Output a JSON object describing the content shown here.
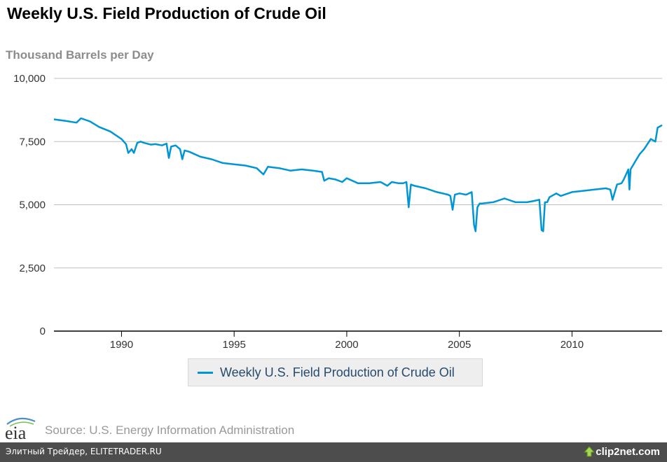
{
  "chart_data": {
    "type": "line",
    "title": "Weekly U.S. Field Production of Crude Oil",
    "ylabel": "Thousand Barrels per Day",
    "xlabel": "",
    "xlim": [
      1987.0,
      2014.0
    ],
    "ylim": [
      0,
      10000
    ],
    "y_ticks": [
      0,
      2500,
      5000,
      7500,
      10000
    ],
    "y_tick_labels": [
      "0",
      "2,500",
      "5,000",
      "7,500",
      "10,000"
    ],
    "x_ticks": [
      1990,
      1995,
      2000,
      2005,
      2010
    ],
    "x_tick_labels": [
      "1990",
      "1995",
      "2000",
      "2005",
      "2010"
    ],
    "grid": "horizontal",
    "legend_position": "bottom-center",
    "series": [
      {
        "name": "Weekly U.S. Field Production of Crude Oil",
        "color": "#0096d6",
        "x": [
          1987.0,
          1987.5,
          1988.0,
          1988.2,
          1988.6,
          1989.0,
          1989.5,
          1990.0,
          1990.2,
          1990.3,
          1990.45,
          1990.55,
          1990.7,
          1990.85,
          1991.0,
          1991.3,
          1991.5,
          1991.8,
          1992.0,
          1992.1,
          1992.2,
          1992.4,
          1992.6,
          1992.7,
          1992.8,
          1993.0,
          1993.5,
          1994.0,
          1994.5,
          1995.0,
          1995.5,
          1996.0,
          1996.3,
          1996.5,
          1997.0,
          1997.5,
          1998.0,
          1998.5,
          1998.9,
          1999.0,
          1999.2,
          1999.5,
          1999.8,
          2000.0,
          2000.5,
          2001.0,
          2001.5,
          2001.8,
          2002.0,
          2002.3,
          2002.5,
          2002.65,
          2002.75,
          2002.85,
          2003.0,
          2003.5,
          2004.0,
          2004.5,
          2004.6,
          2004.7,
          2004.8,
          2005.0,
          2005.3,
          2005.55,
          2005.65,
          2005.72,
          2005.8,
          2005.9,
          2006.0,
          2006.5,
          2007.0,
          2007.5,
          2008.0,
          2008.3,
          2008.55,
          2008.65,
          2008.72,
          2008.8,
          2008.9,
          2009.0,
          2009.3,
          2009.5,
          2010.0,
          2010.5,
          2011.0,
          2011.5,
          2011.7,
          2011.8,
          2012.0,
          2012.2,
          2012.3,
          2012.5,
          2012.55,
          2012.6,
          2012.8,
          2013.0,
          2013.2,
          2013.5,
          2013.7,
          2013.8,
          2014.0
        ],
        "values": [
          8380,
          8320,
          8250,
          8420,
          8300,
          8080,
          7900,
          7600,
          7400,
          7050,
          7200,
          7050,
          7450,
          7500,
          7450,
          7380,
          7400,
          7350,
          7420,
          6850,
          7300,
          7350,
          7200,
          6800,
          7150,
          7100,
          6900,
          6800,
          6650,
          6600,
          6550,
          6450,
          6200,
          6500,
          6450,
          6350,
          6400,
          6350,
          6300,
          5950,
          6050,
          6000,
          5900,
          6050,
          5850,
          5850,
          5900,
          5750,
          5900,
          5850,
          5850,
          5900,
          4900,
          5800,
          5750,
          5650,
          5500,
          5400,
          5350,
          4800,
          5400,
          5450,
          5400,
          5500,
          4200,
          3950,
          4900,
          5050,
          5050,
          5100,
          5250,
          5100,
          5100,
          5150,
          5200,
          4000,
          3950,
          5100,
          5100,
          5300,
          5450,
          5350,
          5500,
          5550,
          5600,
          5650,
          5600,
          5200,
          5800,
          5850,
          6000,
          6400,
          5600,
          6400,
          6700,
          7000,
          7200,
          7600,
          7500,
          8050,
          8150
        ]
      }
    ]
  },
  "legend": {
    "label": "Weekly U.S. Field Production of Crude Oil"
  },
  "source": {
    "text": "Source: U.S. Energy Information Administration"
  },
  "logo": {
    "text": "eia"
  },
  "watermark": {
    "left_text": "Элитный Трейдер, ELITETRADER.RU",
    "right_text": "clip2net.com"
  },
  "colors": {
    "series": "#0096d6",
    "grid": "#c0c0c0",
    "axis": "#000000",
    "footer_bar": "#4d4d4d"
  }
}
